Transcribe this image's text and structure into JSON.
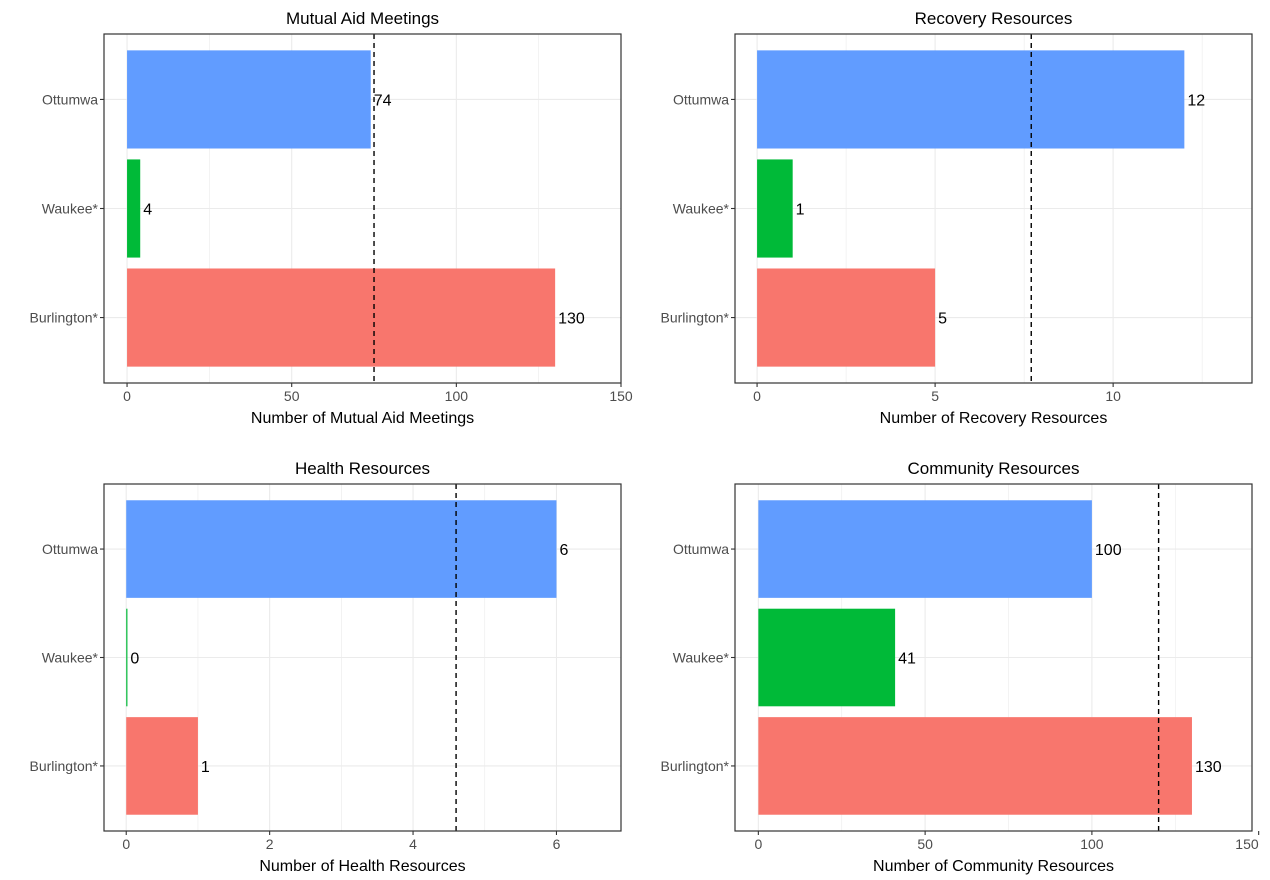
{
  "chart_data": [
    {
      "type": "bar",
      "orientation": "horizontal",
      "title": "Mutual Aid Meetings",
      "xlabel": "Number of Mutual Aid Meetings",
      "ylabel": "",
      "categories": [
        "Ottumwa",
        "Waukee*",
        "Burlington*"
      ],
      "values": [
        74,
        4,
        130
      ],
      "value_labels": [
        "74",
        "4",
        "130"
      ],
      "bar_colors": [
        "#619CFF",
        "#00BA38",
        "#F8766D"
      ],
      "reference_line": 75,
      "xlim": [
        -7,
        150
      ],
      "xticks": [
        0,
        50,
        100,
        150
      ],
      "xtick_labels": [
        "0",
        "50",
        "100",
        "150"
      ],
      "grid": true,
      "legend": "none"
    },
    {
      "type": "bar",
      "orientation": "horizontal",
      "title": "Recovery Resources",
      "xlabel": "Number of Recovery Resources",
      "ylabel": "",
      "categories": [
        "Ottumwa",
        "Waukee*",
        "Burlington*"
      ],
      "values": [
        12,
        1,
        5
      ],
      "value_labels": [
        "12",
        "1",
        "5"
      ],
      "bar_colors": [
        "#619CFF",
        "#00BA38",
        "#F8766D"
      ],
      "reference_line": 7.7,
      "xlim": [
        -0.62,
        13.9
      ],
      "xticks": [
        0,
        5,
        10
      ],
      "xtick_labels": [
        "0",
        "5",
        "10"
      ],
      "grid": true,
      "legend": "none"
    },
    {
      "type": "bar",
      "orientation": "horizontal",
      "title": "Health Resources",
      "xlabel": "Number of Health Resources",
      "ylabel": "",
      "categories": [
        "Ottumwa",
        "Waukee*",
        "Burlington*"
      ],
      "values": [
        6,
        0,
        1
      ],
      "value_labels": [
        "6",
        "0",
        "1"
      ],
      "bar_colors": [
        "#619CFF",
        "#00BA38",
        "#F8766D"
      ],
      "reference_line": 4.6,
      "xlim": [
        -0.31,
        6.9
      ],
      "xticks": [
        0,
        2,
        4,
        6
      ],
      "xtick_labels": [
        "0",
        "2",
        "4",
        "6"
      ],
      "grid": true,
      "legend": "none"
    },
    {
      "type": "bar",
      "orientation": "horizontal",
      "title": "Community Resources",
      "xlabel": "Number of Community Resources",
      "ylabel": "",
      "categories": [
        "Ottumwa",
        "Waukee*",
        "Burlington*"
      ],
      "values": [
        100,
        41,
        130
      ],
      "value_labels": [
        "100",
        "41",
        "130"
      ],
      "bar_colors": [
        "#619CFF",
        "#00BA38",
        "#F8766D"
      ],
      "reference_line": 120,
      "xlim": [
        -7,
        148
      ],
      "xticks": [
        0,
        50,
        100,
        150
      ],
      "xtick_labels": [
        "0",
        "50",
        "100",
        "150"
      ],
      "grid": true,
      "legend": "none"
    }
  ]
}
